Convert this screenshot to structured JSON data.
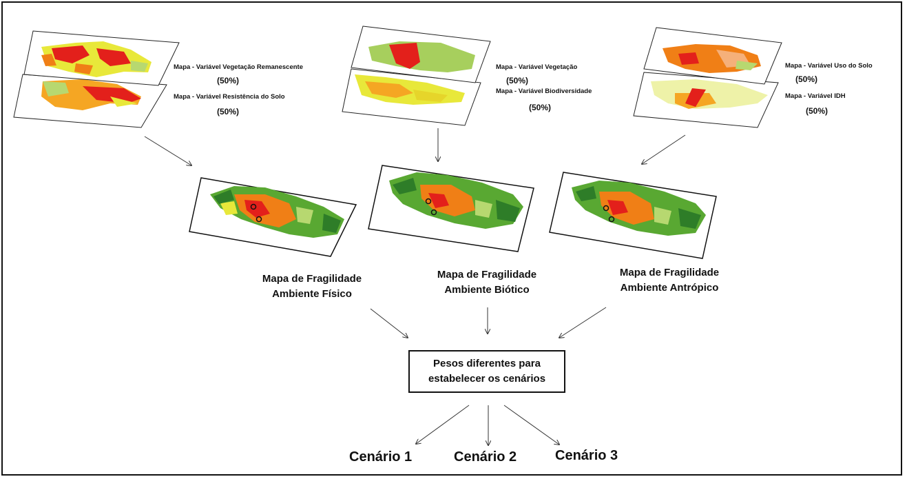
{
  "left_group": {
    "top_label": "Mapa - Variável Vegetação Remanescente",
    "top_pct": "(50%)",
    "bottom_label": "Mapa - Variável Resistência do Solo",
    "bottom_pct": "(50%)"
  },
  "middle_group": {
    "top_label": "Mapa - Variável Vegetação",
    "top_pct": "(50%)",
    "bottom_label": "Mapa - Variável Biodiversidade",
    "bottom_pct": "(50%)"
  },
  "right_group": {
    "top_label": "Mapa - Variável Uso do Solo",
    "top_pct": "(50%)",
    "bottom_label": "Mapa - Variável IDH",
    "bottom_pct": "(50%)"
  },
  "fragility_maps": [
    {
      "line1": "Mapa de Fragilidade",
      "line2": "Ambiente Físico"
    },
    {
      "line1": "Mapa de Fragilidade",
      "line2": "Ambiente Biótico"
    },
    {
      "line1": "Mapa de Fragilidade",
      "line2": "Ambiente Antrópico"
    }
  ],
  "center_box": {
    "text": "Pesos diferentes para\nestabelecer os cenários"
  },
  "scenarios": [
    "Cenário 1",
    "Cenário 2",
    "Cenário 3"
  ],
  "colors": {
    "red": "#e3201b",
    "orange": "#f07f16",
    "amber": "#f5a623",
    "yellow": "#e8e83a",
    "light_green": "#b7d870",
    "green": "#59a832",
    "dark_green": "#2e7d28"
  }
}
